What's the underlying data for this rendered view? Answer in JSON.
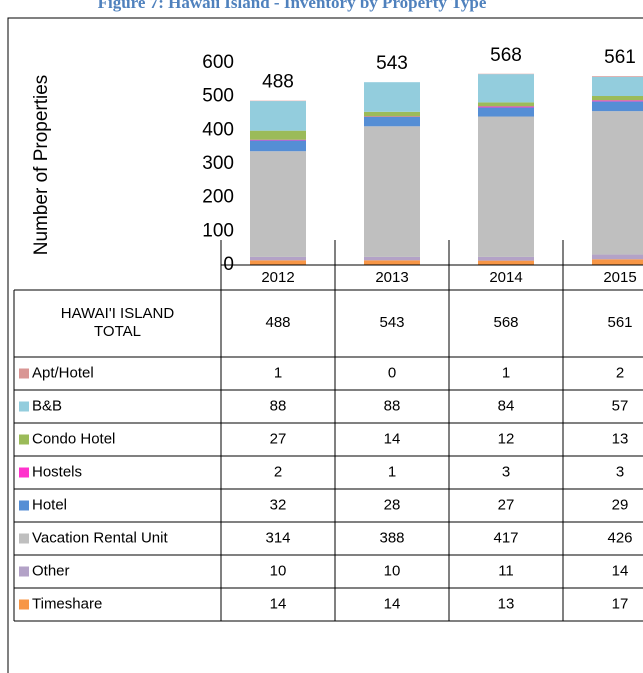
{
  "chart_data": {
    "type": "stacked_bar",
    "title": "Figure 7: Hawaii Island - Inventory by Property Type",
    "y_label": "Number of Properties",
    "categories": [
      "2012",
      "2013",
      "2014",
      "2015"
    ],
    "totals_label": "HAWAI'I ISLAND TOTAL",
    "totals": [
      488,
      543,
      568,
      561
    ],
    "series": [
      {
        "name": "Apt/Hotel",
        "color": "#d99694",
        "values": [
          1,
          0,
          1,
          2
        ]
      },
      {
        "name": "B&B",
        "color": "#93cddd",
        "values": [
          88,
          88,
          84,
          57
        ]
      },
      {
        "name": "Condo Hotel",
        "color": "#9bbb59",
        "values": [
          27,
          14,
          12,
          13
        ]
      },
      {
        "name": "Hostels",
        "color": "#ff33cc",
        "values": [
          2,
          1,
          3,
          3
        ]
      },
      {
        "name": "Hotel",
        "color": "#558ed5",
        "values": [
          32,
          28,
          27,
          29
        ]
      },
      {
        "name": "Vacation Rental Unit",
        "color": "#bfbfbf",
        "values": [
          314,
          388,
          417,
          426
        ]
      },
      {
        "name": "Other",
        "color": "#b3a2c7",
        "values": [
          10,
          10,
          11,
          14
        ]
      },
      {
        "name": "Timeshare",
        "color": "#f79646",
        "values": [
          14,
          14,
          13,
          17
        ]
      }
    ],
    "ylim": [
      0,
      600
    ],
    "yticks": [
      0,
      100,
      200,
      300,
      400,
      500,
      600
    ]
  }
}
